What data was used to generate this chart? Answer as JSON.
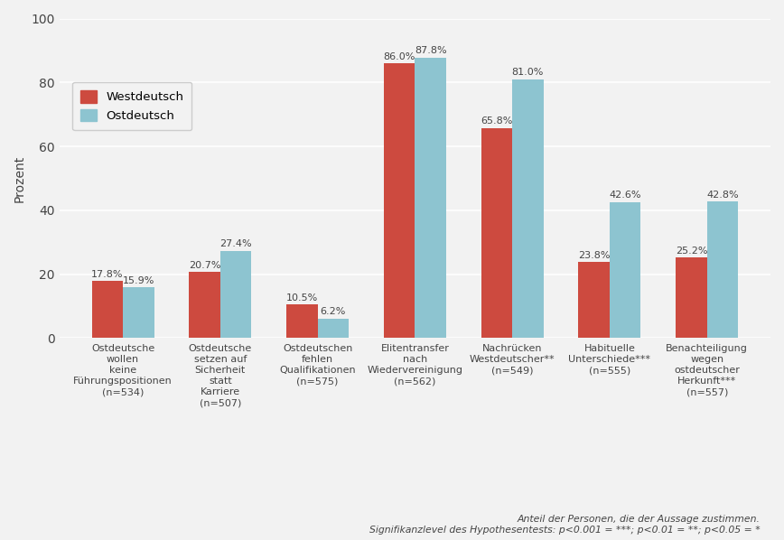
{
  "categories": [
    "Ostdeutsche\nwollen\nkeine\nFührungspositionen\n(n=534)",
    "Ostdeutsche\nsetzen auf\nSicherheit\nstatt\nKarriere\n(n=507)",
    "Ostdeutschen\nfehlen\nQualifikationen\n(n=575)",
    "Elitentransfer\nnach\nWiedervereinigung\n(n=562)",
    "Nachrücken\nWestdeutscher**\n(n=549)",
    "Habituelle\nUnterschiede***\n(n=555)",
    "Benachteiligung\nwegen\nostdeutscher\nHerkunft***\n(n=557)"
  ],
  "westdeutsch_values": [
    17.8,
    20.7,
    10.5,
    86.0,
    65.8,
    23.8,
    25.2
  ],
  "ostdeutsch_values": [
    15.9,
    27.4,
    6.2,
    87.8,
    81.0,
    42.6,
    42.8
  ],
  "westdeutsch_color": "#CD4A3F",
  "ostdeutsch_color": "#8DC4D0",
  "bar_width": 0.32,
  "ylabel": "Prozent",
  "ylim": [
    0,
    100
  ],
  "yticks": [
    0,
    20,
    40,
    60,
    80,
    100
  ],
  "legend_labels": [
    "Westdeutsch",
    "Ostdeutsch"
  ],
  "footnote1": "Anteil der Personen, die der Aussage zustimmen.",
  "footnote2": "Signifikanzlevel des Hypothesentests: p<0.001 = ***; p<0.01 = **; p<0.05 = *",
  "background_color": "#F2F2F2",
  "grid_color": "#FFFFFF",
  "label_fontsize": 8.0,
  "value_fontsize": 8.0,
  "ylabel_fontsize": 10,
  "legend_fontsize": 9.5,
  "footnote_fontsize": 7.8
}
